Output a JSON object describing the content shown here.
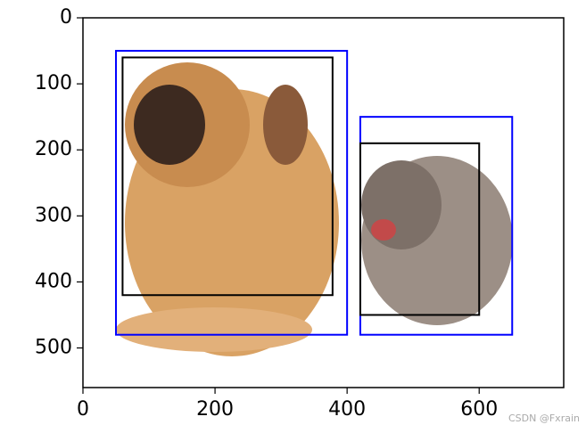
{
  "chart_data": {
    "type": "image_boxes",
    "xlim": [
      0,
      728
    ],
    "ylim": [
      560,
      0
    ],
    "xticks": [
      0,
      200,
      400,
      600
    ],
    "yticks": [
      0,
      100,
      200,
      300,
      400,
      500
    ],
    "boxes": [
      {
        "color": "#0000ff",
        "values": [
          50,
          50,
          400,
          480
        ]
      },
      {
        "color": "#0000ff",
        "values": [
          420,
          150,
          650,
          480
        ]
      },
      {
        "color": "#000000",
        "values": [
          60,
          60,
          378,
          420
        ]
      },
      {
        "color": "#000000",
        "values": [
          420,
          190,
          600,
          450
        ]
      }
    ]
  },
  "watermark": "CSDN @Fxrain"
}
